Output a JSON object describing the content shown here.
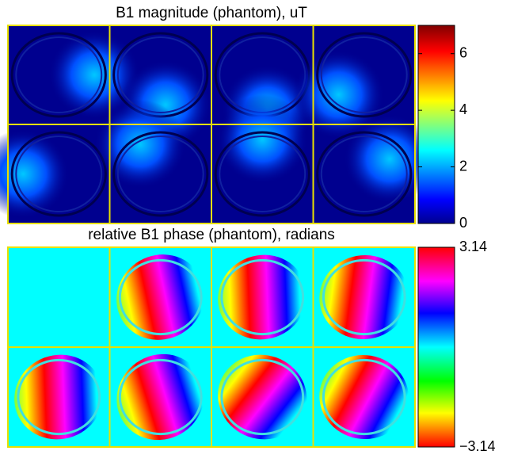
{
  "chart_data": [
    {
      "type": "image",
      "title": "B1 magnitude (phantom), uT",
      "colormap": "jet",
      "clim": [
        0,
        7
      ],
      "cticks": [
        0,
        2,
        4,
        6
      ]
    },
    {
      "type": "image",
      "title": "relative B1 phase (phantom), radians",
      "colormap": "hsv",
      "clim": [
        -3.14,
        3.14
      ],
      "cticks": [
        {
          "value": -3.14,
          "label": "−3.14"
        },
        3.14
      ]
    }
  ]
}
